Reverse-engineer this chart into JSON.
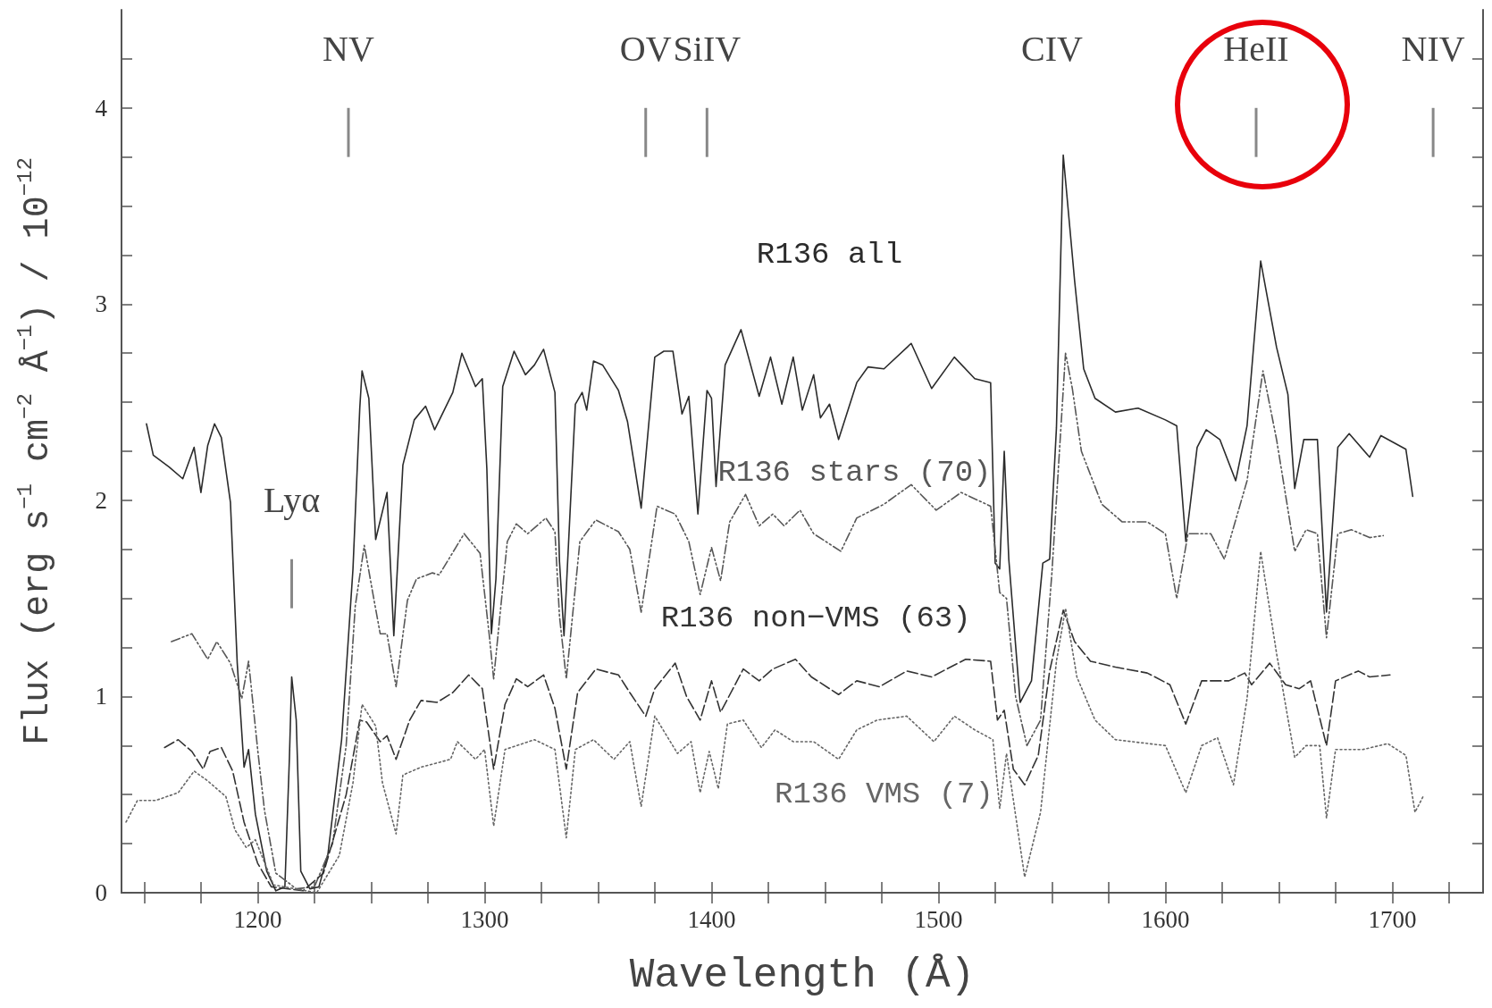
{
  "chart_data": {
    "type": "line",
    "xlabel": "Wavelength (Å)",
    "ylabel": "Flux (erg s$^{−1}$ cm$^{−2}$ Å$^{−1}$) / 10$^{−12}$",
    "xlim": [
      1140,
      1740
    ],
    "ylim": [
      0,
      4.5
    ],
    "xticks": [
      {
        "value": 1150,
        "label": null
      },
      {
        "value": 1175,
        "label": null
      },
      1200,
      {
        "value": 1225,
        "label": null
      },
      {
        "value": 1250,
        "label": null
      },
      {
        "value": 1275,
        "label": null
      },
      1300,
      {
        "value": 1325,
        "label": null
      },
      {
        "value": 1350,
        "label": null
      },
      {
        "value": 1375,
        "label": null
      },
      1400,
      {
        "value": 1425,
        "label": null
      },
      {
        "value": 1450,
        "label": null
      },
      {
        "value": 1475,
        "label": null
      },
      1500,
      {
        "value": 1525,
        "label": null
      },
      {
        "value": 1550,
        "label": null
      },
      {
        "value": 1575,
        "label": null
      },
      1600,
      {
        "value": 1625,
        "label": null
      },
      {
        "value": 1650,
        "label": null
      },
      {
        "value": 1675,
        "label": null
      },
      1700,
      {
        "value": 1725,
        "label": null
      }
    ],
    "yticks": [
      0,
      {
        "value": 0.25,
        "label": null
      },
      {
        "value": 0.5,
        "label": null
      },
      {
        "value": 0.75,
        "label": null
      },
      1,
      {
        "value": 1.25,
        "label": null
      },
      {
        "value": 1.5,
        "label": null
      },
      {
        "value": 1.75,
        "label": null
      },
      2,
      {
        "value": 2.25,
        "label": null
      },
      {
        "value": 2.5,
        "label": null
      },
      {
        "value": 2.75,
        "label": null
      },
      3,
      {
        "value": 3.25,
        "label": null
      },
      {
        "value": 3.5,
        "label": null
      },
      {
        "value": 3.75,
        "label": null
      },
      4,
      {
        "value": 4.25,
        "label": null
      }
    ],
    "grid": false,
    "legend": false,
    "marker": "none",
    "annotations": [
      "Lyα",
      "NV",
      "OV",
      "SiIV",
      "CIV",
      "HeII",
      "NIV"
    ],
    "series": [
      {
        "name": "R136 all",
        "color": "#2b2b2b",
        "line_style": "solid",
        "x": [
          1151,
          1154,
          1161,
          1167,
          1172,
          1175,
          1178,
          1181,
          1184,
          1188,
          1191,
          1194,
          1196,
          1199,
          1204,
          1208,
          1212,
          1214,
          1215,
          1217,
          1219,
          1223,
          1227,
          1231,
          1237,
          1242,
          1245,
          1246,
          1249,
          1252,
          1257,
          1260,
          1264,
          1269,
          1274,
          1278,
          1286,
          1290,
          1296,
          1299,
          1301,
          1303,
          1305,
          1308,
          1313,
          1318,
          1322,
          1326,
          1331,
          1333,
          1335,
          1340,
          1343,
          1345,
          1348,
          1352,
          1359,
          1363,
          1369,
          1375,
          1379,
          1383,
          1387,
          1390,
          1394,
          1398,
          1400,
          1402,
          1406,
          1413,
          1421,
          1426,
          1431,
          1436,
          1440,
          1445,
          1448,
          1452,
          1456,
          1464,
          1469,
          1476,
          1488,
          1497,
          1507,
          1516,
          1523,
          1525,
          1527,
          1529,
          1531,
          1536,
          1541,
          1546,
          1549,
          1552,
          1555,
          1560,
          1564,
          1569,
          1578,
          1588,
          1600,
          1605,
          1609,
          1614,
          1618,
          1624,
          1631,
          1636,
          1642,
          1649,
          1654,
          1657,
          1661,
          1667,
          1671,
          1676,
          1681,
          1690,
          1695,
          1706,
          1709
        ],
        "values": [
          2.39,
          2.23,
          2.17,
          2.11,
          2.27,
          2.04,
          2.28,
          2.39,
          2.32,
          1.99,
          1.17,
          0.64,
          0.73,
          0.4,
          0.11,
          0.01,
          0.03,
          0.69,
          1.1,
          0.88,
          0.11,
          0.02,
          0.03,
          0.2,
          0.78,
          1.65,
          2.47,
          2.66,
          2.52,
          1.8,
          2.04,
          1.31,
          2.18,
          2.41,
          2.48,
          2.36,
          2.55,
          2.75,
          2.58,
          2.62,
          2.16,
          1.32,
          1.6,
          2.58,
          2.76,
          2.64,
          2.69,
          2.77,
          2.55,
          1.69,
          1.31,
          2.49,
          2.55,
          2.46,
          2.71,
          2.69,
          2.56,
          2.4,
          1.96,
          2.73,
          2.76,
          2.76,
          2.44,
          2.53,
          1.93,
          2.56,
          2.52,
          2.07,
          2.69,
          2.87,
          2.53,
          2.73,
          2.49,
          2.73,
          2.46,
          2.64,
          2.42,
          2.49,
          2.31,
          2.6,
          2.68,
          2.67,
          2.8,
          2.57,
          2.73,
          2.62,
          2.6,
          1.68,
          1.65,
          2.25,
          1.7,
          0.97,
          1.08,
          1.68,
          1.7,
          2.37,
          3.76,
          3.12,
          2.67,
          2.52,
          2.45,
          2.47,
          2.41,
          2.38,
          1.79,
          2.27,
          2.36,
          2.31,
          2.1,
          2.38,
          3.22,
          2.78,
          2.54,
          2.06,
          2.31,
          2.31,
          1.43,
          2.27,
          2.34,
          2.22,
          2.33,
          2.26,
          2.02
        ]
      },
      {
        "name": "R136 stars (70)",
        "color": "#575757",
        "line_style": "dashdot",
        "x": [
          1162,
          1171,
          1178,
          1182,
          1188,
          1193,
          1196,
          1200,
          1203,
          1208,
          1217,
          1225,
          1233,
          1239,
          1243,
          1247,
          1251,
          1254,
          1257,
          1261,
          1266,
          1270,
          1277,
          1280,
          1291,
          1298,
          1302,
          1304,
          1310,
          1314,
          1319,
          1327,
          1331,
          1333,
          1336,
          1342,
          1349,
          1359,
          1364,
          1369,
          1376,
          1384,
          1390,
          1395,
          1400,
          1404,
          1408,
          1415,
          1421,
          1427,
          1432,
          1439,
          1445,
          1457,
          1464,
          1476,
          1488,
          1499,
          1510,
          1523,
          1527,
          1530,
          1534,
          1539,
          1545,
          1550,
          1556,
          1559,
          1563,
          1572,
          1581,
          1592,
          1600,
          1605,
          1610,
          1620,
          1626,
          1636,
          1643,
          1649,
          1657,
          1662,
          1667,
          1671,
          1676,
          1682,
          1690,
          1696
        ],
        "values": [
          1.28,
          1.32,
          1.19,
          1.28,
          1.17,
          0.99,
          1.18,
          0.73,
          0.42,
          0.1,
          0.02,
          0.03,
          0.25,
          0.75,
          1.46,
          1.77,
          1.51,
          1.32,
          1.32,
          1.05,
          1.49,
          1.6,
          1.63,
          1.62,
          1.83,
          1.73,
          1.32,
          1.09,
          1.79,
          1.88,
          1.83,
          1.91,
          1.84,
          1.41,
          1.09,
          1.79,
          1.9,
          1.84,
          1.75,
          1.43,
          1.97,
          1.93,
          1.79,
          1.52,
          1.76,
          1.59,
          1.89,
          2.03,
          1.87,
          1.93,
          1.87,
          1.95,
          1.83,
          1.74,
          1.91,
          1.98,
          2.08,
          1.95,
          2.04,
          1.97,
          1.53,
          1.5,
          1.0,
          0.75,
          0.88,
          1.63,
          2.75,
          2.57,
          2.25,
          1.98,
          1.89,
          1.89,
          1.83,
          1.5,
          1.83,
          1.83,
          1.7,
          2.1,
          2.66,
          2.31,
          1.74,
          1.85,
          1.83,
          1.3,
          1.83,
          1.85,
          1.81,
          1.82
        ]
      },
      {
        "name": "R136 non−VMS (63)",
        "color": "#333333",
        "line_style": "dashed",
        "x": [
          1159,
          1165,
          1171,
          1176,
          1179,
          1184,
          1189,
          1194,
          1200,
          1206,
          1220,
          1229,
          1239,
          1245,
          1248,
          1254,
          1257,
          1261,
          1267,
          1272,
          1279,
          1286,
          1293,
          1299,
          1304,
          1309,
          1314,
          1319,
          1326,
          1331,
          1336,
          1341,
          1349,
          1359,
          1364,
          1371,
          1375,
          1384,
          1389,
          1395,
          1400,
          1404,
          1414,
          1421,
          1427,
          1437,
          1444,
          1456,
          1464,
          1474,
          1486,
          1497,
          1512,
          1523,
          1526,
          1529,
          1533,
          1538,
          1544,
          1549,
          1555,
          1560,
          1567,
          1578,
          1592,
          1602,
          1609,
          1616,
          1628,
          1635,
          1638,
          1646,
          1653,
          1659,
          1664,
          1671,
          1675,
          1685,
          1690,
          1699
        ],
        "values": [
          0.74,
          0.78,
          0.72,
          0.63,
          0.72,
          0.74,
          0.62,
          0.36,
          0.15,
          0.03,
          0.01,
          0.1,
          0.5,
          0.88,
          0.87,
          0.77,
          0.8,
          0.68,
          0.88,
          0.98,
          0.97,
          1.02,
          1.11,
          1.04,
          0.63,
          0.96,
          1.09,
          1.05,
          1.11,
          0.94,
          0.63,
          1.02,
          1.14,
          1.11,
          1.02,
          0.9,
          1.04,
          1.17,
          1.0,
          0.88,
          1.08,
          0.92,
          1.14,
          1.08,
          1.14,
          1.19,
          1.1,
          1.01,
          1.08,
          1.05,
          1.13,
          1.1,
          1.19,
          1.18,
          0.88,
          0.93,
          0.63,
          0.55,
          0.7,
          1.13,
          1.44,
          1.28,
          1.18,
          1.15,
          1.12,
          1.06,
          0.86,
          1.08,
          1.08,
          1.12,
          1.06,
          1.17,
          1.06,
          1.04,
          1.08,
          0.75,
          1.08,
          1.13,
          1.1,
          1.11
        ]
      },
      {
        "name": "R136 VMS (7)",
        "color": "#666666",
        "line_style": "dotted",
        "x": [
          1142,
          1147,
          1155,
          1165,
          1172,
          1178,
          1186,
          1190,
          1195,
          1199,
          1207,
          1226,
          1236,
          1242,
          1246,
          1252,
          1255,
          1261,
          1264,
          1272,
          1285,
          1288,
          1296,
          1300,
          1304,
          1309,
          1322,
          1331,
          1336,
          1340,
          1348,
          1357,
          1364,
          1369,
          1375,
          1385,
          1391,
          1395,
          1399,
          1403,
          1407,
          1414,
          1422,
          1428,
          1436,
          1445,
          1456,
          1464,
          1473,
          1486,
          1498,
          1507,
          1516,
          1524,
          1527,
          1530,
          1538,
          1545,
          1552,
          1556,
          1561,
          1569,
          1578,
          1600,
          1609,
          1616,
          1623,
          1630,
          1636,
          1642,
          1649,
          1657,
          1662,
          1668,
          1671,
          1675,
          1687,
          1698,
          1706,
          1710,
          1714
        ],
        "values": [
          0.36,
          0.47,
          0.47,
          0.51,
          0.62,
          0.57,
          0.49,
          0.32,
          0.23,
          0.27,
          0.04,
          0.0,
          0.19,
          0.56,
          0.96,
          0.85,
          0.56,
          0.3,
          0.6,
          0.64,
          0.68,
          0.77,
          0.68,
          0.73,
          0.34,
          0.73,
          0.78,
          0.73,
          0.28,
          0.73,
          0.78,
          0.68,
          0.77,
          0.44,
          0.9,
          0.71,
          0.77,
          0.51,
          0.72,
          0.53,
          0.86,
          0.88,
          0.74,
          0.83,
          0.77,
          0.77,
          0.68,
          0.83,
          0.88,
          0.9,
          0.77,
          0.9,
          0.83,
          0.78,
          0.43,
          0.71,
          0.08,
          0.41,
          1.18,
          1.45,
          1.1,
          0.88,
          0.78,
          0.75,
          0.51,
          0.75,
          0.79,
          0.55,
          0.99,
          1.74,
          1.22,
          0.69,
          0.75,
          0.75,
          0.38,
          0.73,
          0.73,
          0.76,
          0.7,
          0.41,
          0.5
        ]
      }
    ]
  }
}
